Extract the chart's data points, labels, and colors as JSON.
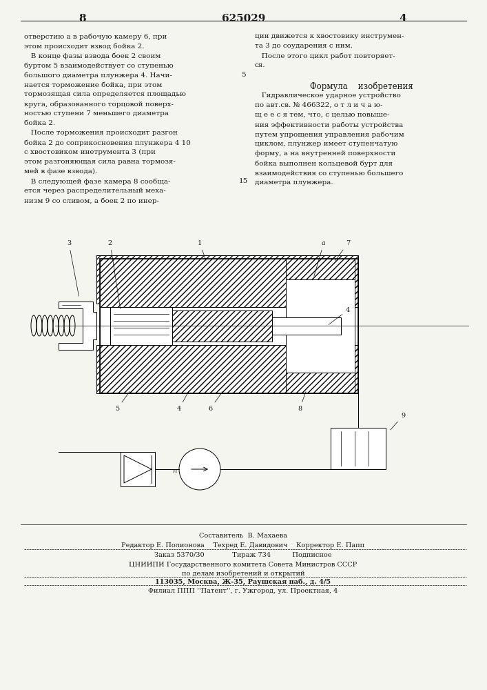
{
  "page_number_left": "8",
  "patent_number": "625029",
  "page_number_right": "4",
  "bg_color": "#f5f5f0",
  "text_color": "#1a1a1a",
  "left_column_text": [
    "отверстию а в рабочую камеру 6, при",
    "этом происходит взвод бойка 2.",
    "   В конце фазы взвода боек 2 своим",
    "буртом 5 взаимодействует со ступенью",
    "большого диаметра плунжера 4. Начи-",
    "нается торможение бойка, при этом",
    "тормозящая сила определяется площадью",
    "круга, образованного торцовой поверх-",
    "ностью ступени 7 меньшего диаметра",
    "бойка 2.",
    "   После торможения происходит разгон",
    "бойка 2 до соприкосновения плунжера 4 10",
    "с хвостовиком инетрумента 3 (при",
    "этом разгоняющая сила равна тормозя-",
    "мей в фазе взвода).",
    "   В следующей фазе камера 8 сообща-",
    "ется через распределительный меха-",
    "низм 9 со сливом, а боек 2 по инер-"
  ],
  "right_column_text_top": [
    "ции движется к хвостовику инструмен-",
    "та 3 до соударения с ним.",
    "   После этого цикл работ повторяет-",
    "ся."
  ],
  "formula_title": "Формула    изобретения",
  "formula_text": [
    "   Гидравлическое ударное устройство",
    "по авт.св. № 466322, о т л и ч а ю-",
    "щ е е с я тем, что, с целью повыше-",
    "ния эффективности работы устройства",
    "путем упрощения управления рабочим",
    "циклом, плунжер имеет ступенчатую",
    "форму, а на внутренней поверхности",
    "бойка выполнен кольцевой бурт для",
    "взаимодействия со ступенью большего",
    "диаметра плунжера."
  ],
  "left_line_number": "5",
  "right_line_number": "15",
  "bottom_text": [
    "Составитель  В. Махаева",
    "Редактор Е. Полионова    Техред Е. Давидович    Корректор Е. Папп",
    "Заказ 5370/30             Тираж 734          Подписное",
    "ЦНИИПИ Государственного комитета Совета Министров СССР",
    "по делам изобретений и открытий",
    "113035, Москва, Ж-35, Раушская наб., д. 4/5",
    "Филиал ППП ''Патент'', г. Ужгород, ул. Проектная, 4"
  ]
}
